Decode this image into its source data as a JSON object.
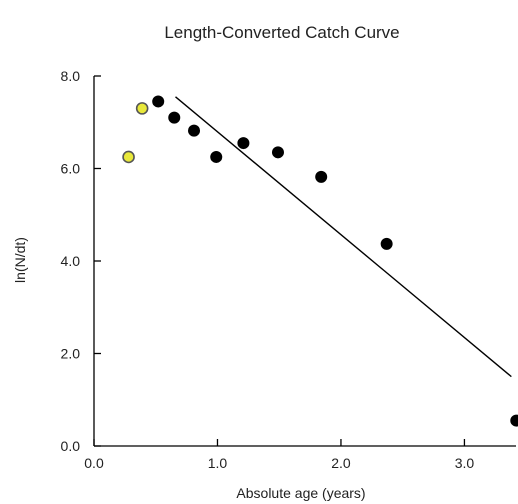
{
  "chart_data": {
    "type": "scatter",
    "title": "Length-Converted Catch Curve",
    "xlabel": "Absolute age (years)",
    "ylabel": "ln(N/dt)",
    "xlim": [
      0.0,
      3.45
    ],
    "ylim": [
      0.0,
      8.0
    ],
    "x_ticks": [
      "0.0",
      "1.0",
      "2.0",
      "3.0"
    ],
    "y_ticks": [
      "0.0",
      "2.0",
      "4.0",
      "6.0",
      "8.0"
    ],
    "grid": false,
    "series": [
      {
        "role": "excluded",
        "color": "#e8e83a",
        "points": [
          {
            "x": 0.28,
            "y": 6.25
          },
          {
            "x": 0.39,
            "y": 7.3
          }
        ]
      },
      {
        "role": "included",
        "color": "#000000",
        "points": [
          {
            "x": 0.52,
            "y": 7.45
          },
          {
            "x": 0.65,
            "y": 7.1
          },
          {
            "x": 0.81,
            "y": 6.82
          },
          {
            "x": 0.99,
            "y": 6.25
          },
          {
            "x": 1.21,
            "y": 6.55
          },
          {
            "x": 1.49,
            "y": 6.35
          },
          {
            "x": 1.84,
            "y": 5.82
          },
          {
            "x": 2.37,
            "y": 4.37
          },
          {
            "x": 3.42,
            "y": 0.55
          }
        ]
      }
    ],
    "regression_line": {
      "color": "#000000",
      "x": [
        0.66,
        3.38
      ],
      "y": [
        7.55,
        1.5
      ]
    }
  }
}
